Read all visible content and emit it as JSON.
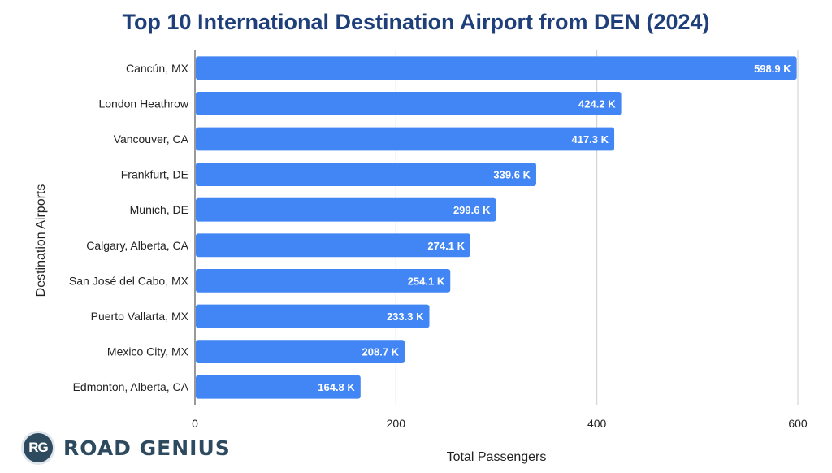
{
  "colors": {
    "title": "#1f3f7a",
    "bar": "#4285f4",
    "grid": "#cccccc",
    "axis": "#333333"
  },
  "logo": {
    "badge": "RG",
    "text": "ROAD GENIUS"
  },
  "chart_data": {
    "type": "bar",
    "orientation": "horizontal",
    "title": "Top 10 International Destination Airport from DEN (2024)",
    "xlabel": "Total Passengers",
    "ylabel": "Destination Airports",
    "xlim": [
      0,
      600
    ],
    "xticks": [
      0,
      200,
      400,
      600
    ],
    "grid": true,
    "categories": [
      "Cancún, MX",
      "London Heathrow",
      "Vancouver, CA",
      "Frankfurt, DE",
      "Munich, DE",
      "Calgary, Alberta, CA",
      "San José del Cabo, MX",
      "Puerto Vallarta, MX",
      "Mexico City, MX",
      "Edmonton, Alberta, CA"
    ],
    "values": [
      598.9,
      424.2,
      417.3,
      339.6,
      299.6,
      274.1,
      254.1,
      233.3,
      208.7,
      164.8
    ],
    "value_labels": [
      "598.9 K",
      "424.2 K",
      "417.3 K",
      "339.6 K",
      "299.6 K",
      "274.1 K",
      "254.1 K",
      "233.3 K",
      "208.7 K",
      "164.8 K"
    ]
  }
}
